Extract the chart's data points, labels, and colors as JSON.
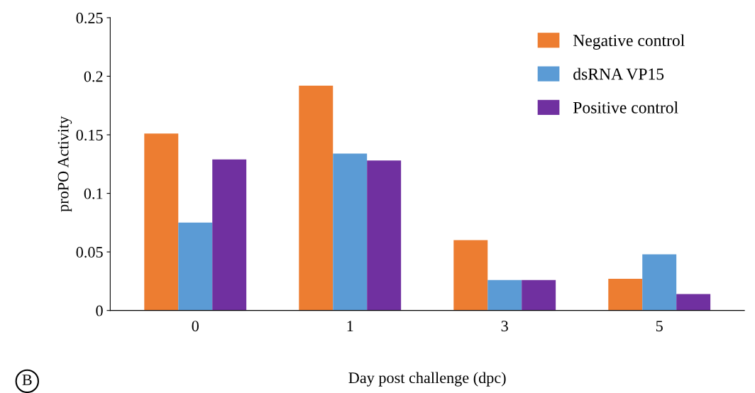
{
  "chart_data": {
    "type": "bar",
    "xlabel": "Day post challenge (dpc)",
    "ylabel": "proPO Activity",
    "categories": [
      "0",
      "1",
      "3",
      "5"
    ],
    "series": [
      {
        "name": "Negative control",
        "color": "#ed7d31",
        "values": [
          0.151,
          0.192,
          0.06,
          0.027
        ]
      },
      {
        "name": "dsRNA VP15",
        "color": "#5b9bd5",
        "values": [
          0.075,
          0.134,
          0.026,
          0.048
        ]
      },
      {
        "name": "Positive control",
        "color": "#7030a0",
        "values": [
          0.129,
          0.128,
          0.026,
          0.014
        ]
      }
    ],
    "ylim": [
      0,
      0.25
    ],
    "yticks": [
      0,
      {
        "value": 0.05,
        "label": "0.05"
      },
      {
        "value": 0.1,
        "label": "0.1"
      },
      {
        "value": 0.15,
        "label": "0.15"
      },
      {
        "value": 0.2,
        "label": "0.2"
      },
      {
        "value": 0.25,
        "label": "0.25"
      }
    ],
    "grid": false,
    "legend": "top right",
    "annotations": [
      "B"
    ]
  }
}
